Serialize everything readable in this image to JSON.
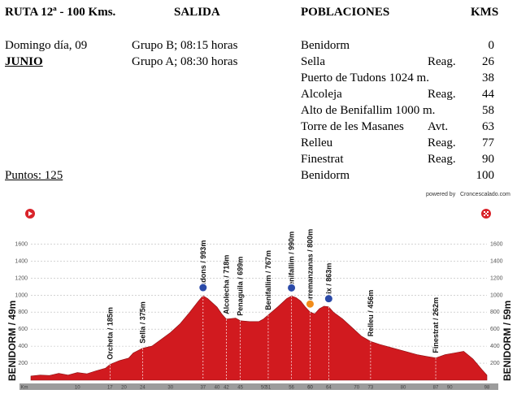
{
  "header": {
    "route": "RUTA 12ª - 100 Kms.",
    "salida_title": "SALIDA",
    "poblaciones_title": "POBLACIONES",
    "kms_title": "KMS",
    "date": "Domingo día, 09",
    "month": "JUNIO",
    "group_b": "Grupo B; 08:15 horas",
    "group_a": "Grupo A; 08:30 horas",
    "points": "Puntos: 125"
  },
  "towns": [
    {
      "name": "Benidorm",
      "tag": "",
      "km": "0"
    },
    {
      "name": "Sella",
      "tag": "Reag.",
      "km": "26"
    },
    {
      "name": "Puerto de Tudons 1024 m.",
      "tag": "",
      "km": "38"
    },
    {
      "name": "Alcoleja",
      "tag": "Reag.",
      "km": "44"
    },
    {
      "name": "Alto de Benifallim 1000 m.",
      "tag": "",
      "km": "58"
    },
    {
      "name": "Torre de les Masanes",
      "tag": "Avt.",
      "km": "63"
    },
    {
      "name": "Relleu",
      "tag": "Reag.",
      "km": "77"
    },
    {
      "name": "Finestrat",
      "tag": "Reag.",
      "km": "90"
    },
    {
      "name": "Benidorm",
      "tag": "",
      "km": "100"
    }
  ],
  "profile": {
    "brand": "Croncescalado.com",
    "brand_prefix": "powered by",
    "start_label": "BENIDORM / 49m",
    "end_label": "BENIDORM / 59m",
    "y_ticks": [
      "1600",
      "1400",
      "1200",
      "1000",
      "800",
      "600",
      "400",
      "200"
    ],
    "km_axis": [
      "Km",
      "10",
      "20",
      "30",
      "40",
      "50",
      "60",
      "70",
      "80",
      "90",
      "98"
    ],
    "waypoints": [
      {
        "label": "Orcheta / 185m",
        "km": 17
      },
      {
        "label": "Sella / 375m",
        "km": 24
      },
      {
        "label": "Tudons / 993m",
        "km": 37
      },
      {
        "label": "Alcolecha / 718m",
        "km": 42
      },
      {
        "label": "Penaguila / 699m",
        "km": 45
      },
      {
        "label": "Benifallim / 767m",
        "km": 51
      },
      {
        "label": "Benifallim / 990m",
        "km": 56
      },
      {
        "label": "Torremanzanas / 800m",
        "km": 60
      },
      {
        "label": "Teix / 863m",
        "km": 64
      },
      {
        "label": "Relleu / 456m",
        "km": 73
      },
      {
        "label": "Finestrat / 262m",
        "km": 87
      }
    ],
    "colors": {
      "fill": "#d11a1f",
      "grid": "#b9b9b9",
      "axis": "#9c9c9c",
      "marker_blue": "#2b4aa8",
      "marker_orange": "#f28c1a"
    }
  }
}
